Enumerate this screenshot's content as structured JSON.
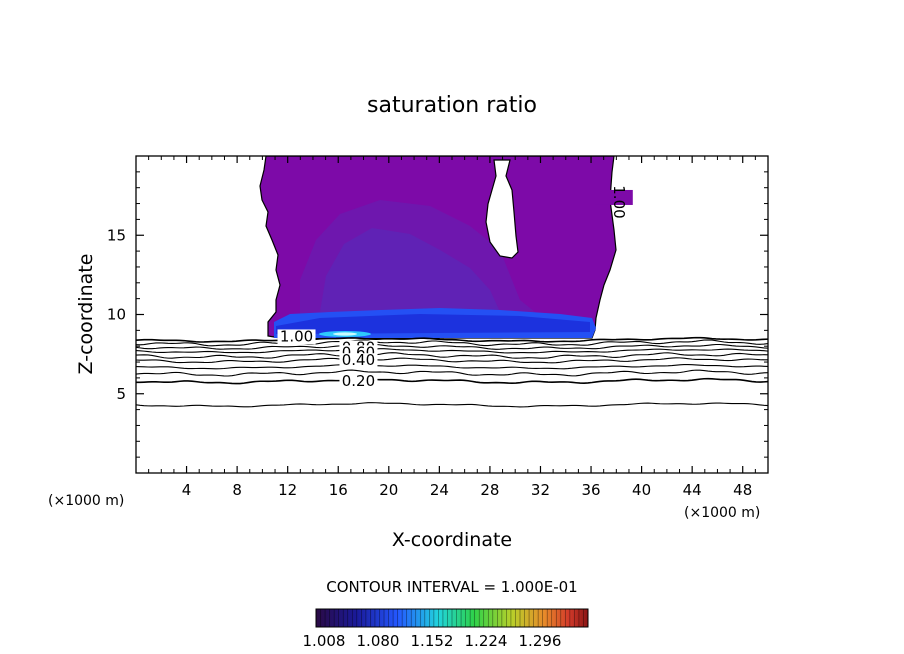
{
  "chart_data": {
    "type": "heatmap",
    "title": "saturation ratio",
    "xlabel": "X-coordinate",
    "ylabel": "Z-coordinate",
    "x_unit_left": "(×1000 m)",
    "x_unit_right": "(×1000 m)",
    "xlim": [
      0,
      50
    ],
    "ylim": [
      0,
      20
    ],
    "x_ticks": [
      4,
      8,
      12,
      16,
      20,
      24,
      28,
      32,
      36,
      40,
      44,
      48
    ],
    "y_ticks": [
      5,
      10,
      15
    ],
    "contour_interval_text": "CONTOUR INTERVAL = 1.000E-01",
    "contour_labels": [
      {
        "text": "1.00",
        "x": 12.7,
        "z": 8.3
      },
      {
        "text": "0.80",
        "x": 17.6,
        "z": 7.6
      },
      {
        "text": "0.60",
        "x": 17.6,
        "z": 7.3
      },
      {
        "text": "0.40",
        "x": 17.6,
        "z": 6.8
      },
      {
        "text": "0.20",
        "x": 17.6,
        "z": 5.5
      },
      {
        "text": "1.00",
        "x": 37.8,
        "z": 17.1
      }
    ],
    "contour_levels_below_cloud": [
      {
        "level": 0.0,
        "z": 4.3
      },
      {
        "level": 0.2,
        "z": 5.8
      },
      {
        "level": 0.3,
        "z": 6.3
      },
      {
        "level": 0.4,
        "z": 6.7
      },
      {
        "level": 0.5,
        "z": 7.1
      },
      {
        "level": 0.6,
        "z": 7.4
      },
      {
        "level": 0.7,
        "z": 7.7
      },
      {
        "level": 0.8,
        "z": 7.95
      },
      {
        "level": 0.9,
        "z": 8.2
      },
      {
        "level": 1.0,
        "z": 8.4
      }
    ],
    "supersaturated_region": {
      "x_range": [
        10.5,
        36.5
      ],
      "z_range": [
        8.6,
        20
      ],
      "cloud_base_band_z": [
        8.6,
        10.0
      ],
      "hole": {
        "x_center": 29.2,
        "z_center": 16.3
      }
    },
    "colorbar": {
      "tick_labels": [
        "1.008",
        "1.080",
        "1.152",
        "1.224",
        "1.296"
      ],
      "colors": [
        "#2a0a44",
        "#1a1a9a",
        "#2458ff",
        "#21d4dc",
        "#2ed24a",
        "#b8d02a",
        "#e88a2a",
        "#d23a2a",
        "#8a1414"
      ]
    }
  }
}
